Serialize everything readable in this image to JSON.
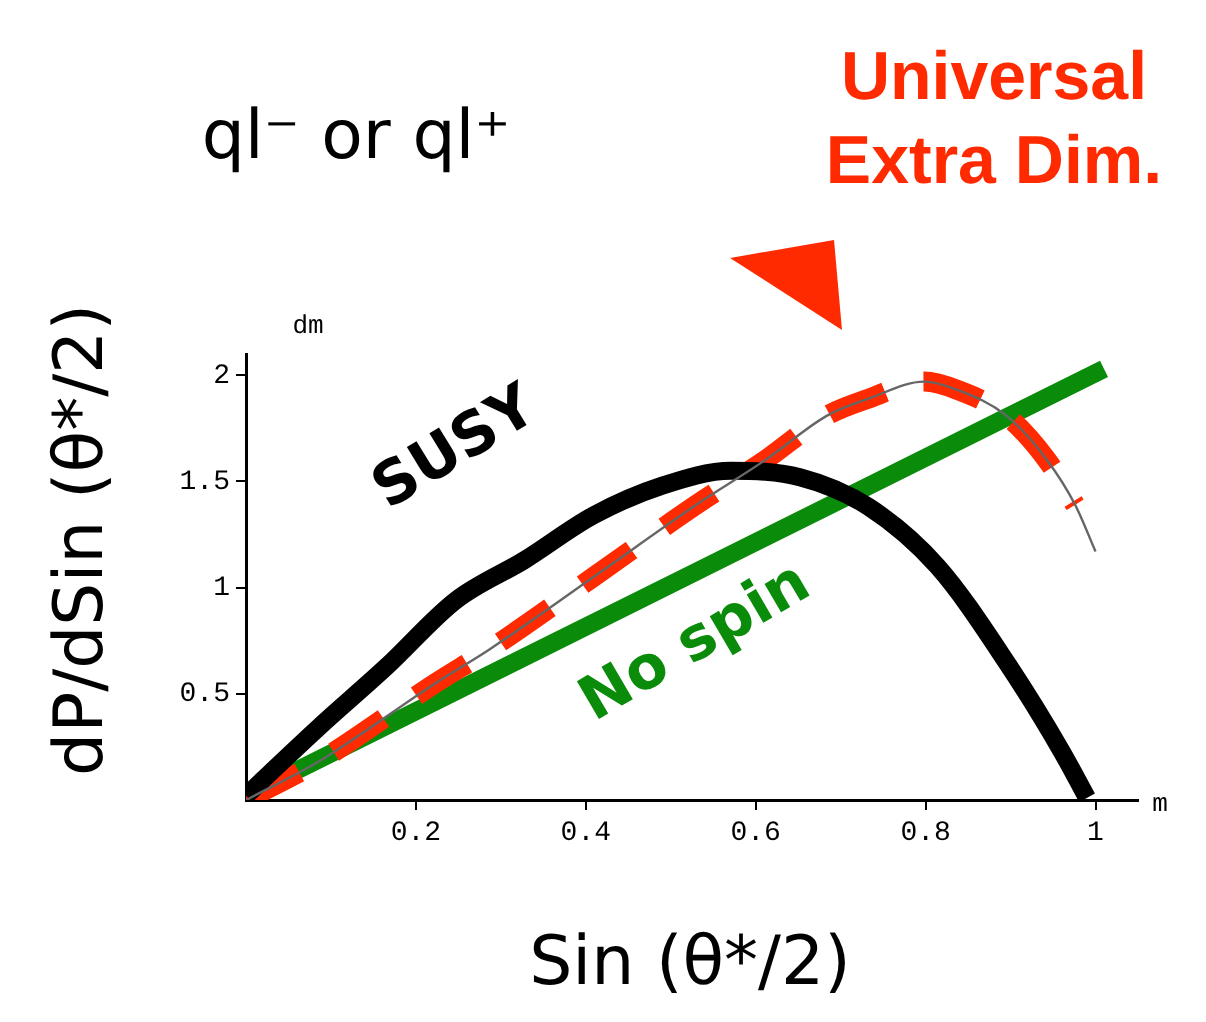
{
  "chart_data": {
    "type": "line",
    "title": "ql⁻ or ql⁺",
    "xlabel": "Sin (θ*/2)",
    "ylabel": "dP/dSin (θ*/2)",
    "annotations": [
      "dm",
      "m"
    ],
    "xlim": [
      0,
      1.05
    ],
    "ylim": [
      0,
      2.1
    ],
    "xticks": [
      0.2,
      0.4,
      0.6,
      0.8,
      1
    ],
    "yticks": [
      0.5,
      1,
      1.5,
      2
    ],
    "grid": false,
    "legend": false,
    "series": [
      {
        "color": "#666666",
        "line_style": "solid",
        "x": [
          0,
          0.085,
          0.223,
          0.287,
          0.409,
          0.53,
          0.611,
          0.684,
          0.733,
          0.798,
          0.838,
          0.895,
          0.943,
          0.976,
          1.0
        ],
        "values": [
          0,
          0.18,
          0.55,
          0.71,
          1.05,
          1.39,
          1.6,
          1.81,
          1.89,
          1.97,
          1.93,
          1.81,
          1.6,
          1.39,
          1.17
        ]
      },
      {
        "name": "No spin",
        "color": "#0a8c0a",
        "line_style": "solid",
        "x": [
          0,
          1.01
        ],
        "values": [
          0.02,
          2.03
        ]
      },
      {
        "name": "Universal Extra Dim.",
        "color": "#ff2a00",
        "line_style": "dashed",
        "x": [
          0,
          0.085,
          0.223,
          0.287,
          0.409,
          0.53,
          0.611,
          0.684,
          0.733,
          0.798,
          0.838,
          0.895,
          0.943,
          0.976
        ],
        "values": [
          0,
          0.18,
          0.55,
          0.71,
          1.05,
          1.39,
          1.6,
          1.81,
          1.89,
          1.97,
          1.93,
          1.81,
          1.6,
          1.39
        ]
      },
      {
        "name": "SUSY",
        "color": "#000000",
        "line_style": "solid",
        "x": [
          0,
          0.085,
          0.166,
          0.247,
          0.328,
          0.409,
          0.49,
          0.571,
          0.652,
          0.733,
          0.814,
          0.895,
          0.96,
          0.99
        ],
        "values": [
          0.02,
          0.34,
          0.63,
          0.94,
          1.13,
          1.34,
          1.48,
          1.55,
          1.52,
          1.38,
          1.1,
          0.65,
          0.23,
          0.01
        ]
      }
    ]
  }
}
